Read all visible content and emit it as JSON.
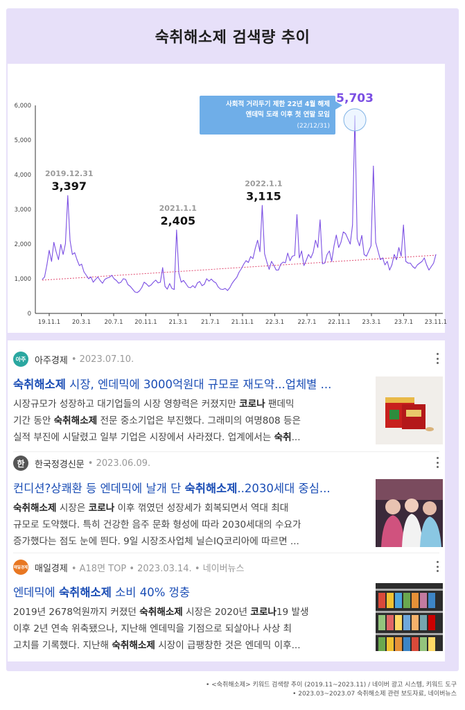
{
  "title": "숙취해소제 검색량 추이",
  "chart_data": {
    "type": "line",
    "y_ticks": [
      "0",
      "1,000",
      "2,000",
      "3,000",
      "4,000",
      "5,000",
      "6,000"
    ],
    "ylim": [
      0,
      6000
    ],
    "x_ticks": [
      "19.11.1",
      "20.3.1",
      "20.7.1",
      "20.11.1",
      "21.3.1",
      "21.7.1",
      "21.11.1",
      "22.3.1",
      "22.7.1",
      "22.11.1",
      "23.3.1",
      "23.7.1",
      "23.11.1"
    ],
    "grid": false,
    "line_color": "#7b4fe3",
    "trend_color": "#e0496f",
    "trend": [
      960,
      1680
    ],
    "series": [
      {
        "values": [
          980,
          1050,
          1400,
          1820,
          1500,
          2050,
          1780,
          1550,
          1990,
          1700,
          2010,
          3397,
          2100,
          1700,
          1750,
          1550,
          1380,
          1420,
          1200,
          1100,
          1000,
          1050,
          900,
          980,
          1050,
          950,
          870,
          980,
          1020,
          1040,
          1100,
          1000,
          950,
          870,
          900,
          1000,
          980,
          830,
          780,
          700,
          620,
          600,
          650,
          750,
          900,
          850,
          780,
          820,
          900,
          960,
          880,
          900,
          1320,
          780,
          700,
          860,
          720,
          690,
          2405,
          1160,
          900,
          950,
          860,
          760,
          740,
          800,
          740,
          880,
          920,
          800,
          840,
          1000,
          930,
          990,
          920,
          880,
          760,
          700,
          690,
          720,
          660,
          740,
          870,
          960,
          1040,
          1190,
          1290,
          1420,
          1520,
          1470,
          1640,
          1580,
          1880,
          2110,
          1780,
          3115,
          1720,
          1480,
          1270,
          1500,
          1390,
          1250,
          1250,
          1420,
          1480,
          1460,
          1740,
          1520,
          1650,
          1670,
          2850,
          1600,
          1800,
          1380,
          1530,
          1700,
          1600,
          1760,
          2110,
          1900,
          2700,
          1430,
          1450,
          1700,
          1800,
          1500,
          1950,
          2260,
          1900,
          2050,
          2350,
          2300,
          2150,
          2000,
          2550,
          5703,
          2150,
          1950,
          2250,
          1700,
          1650,
          1800,
          1950,
          4250,
          2050,
          1800,
          1550,
          1600,
          1400,
          1500,
          1250,
          1400,
          1700,
          1550,
          1900,
          1650,
          2550,
          1500,
          1450,
          1450,
          1350,
          1300,
          1400,
          1450,
          1500,
          1600,
          1400,
          1250,
          1350,
          1450,
          1700
        ]
      }
    ],
    "annotations": [
      {
        "date": "2019.12.31",
        "value": "3,397"
      },
      {
        "date": "2021.1.1",
        "value": "2,405"
      },
      {
        "date": "2022.1.1",
        "value": "3,115"
      },
      {
        "value": "5,703",
        "note_line1": "사회적 거리두기 제한 22년 4월 해제",
        "note_line2": "엔데믹 도래 이후 첫 연말 모임",
        "note_date": "(22/12/31)"
      }
    ]
  },
  "news": [
    {
      "source": "아주경제",
      "meta": "• 2023.07.10.",
      "logo_text": "아주",
      "logo_color": "#2aa7a0",
      "headline_kw": "숙취해소제",
      "headline_rest": " 시장, 엔데믹에 3000억원대 규모로 재도약...업체별 ...",
      "lines": [
        [
          "시장규모가 성장하고 대기업들의 시장 영향력은 커졌지만 ",
          "코로나",
          " 팬데믹"
        ],
        [
          "기간 동안 ",
          "숙취해소제",
          " 전문 중소기업은 부진했다. 그래미의 여명808 등은"
        ],
        [
          "실적 부진에 시달렸고 일부 기업은 시장에서 사라졌다. 업계에서는 ",
          "숙취",
          "..."
        ]
      ]
    },
    {
      "source": "한국정경신문",
      "meta": "• 2023.06.09.",
      "logo_text": "한",
      "logo_color": "#555555",
      "headline_pre": "컨디션?상쾌환 등 엔데믹에 날개 단 ",
      "headline_kw": "숙취해소제",
      "headline_rest": "..2030세대 중심...",
      "lines": [
        [
          "",
          "숙취해소제",
          " 시장은 ",
          "코로나",
          " 이후 꺾였던 성장세가 회복되면서 역대 최대"
        ],
        [
          "규모로 도약했다. 특히 건강한 음주 문화 형성에 따라 2030세대의 수요가"
        ],
        [
          "증가했다는 점도 눈에 띈다. 9일 시장조사업체 닐슨IQ코리아에 따르면 ..."
        ]
      ]
    },
    {
      "source": "매일경제",
      "meta": "• A18면 TOP • 2023.03.14. • 네이버뉴스",
      "logo_text": "매일경제",
      "logo_color": "#e87722",
      "headline_pre": "엔데믹에 ",
      "headline_kw": "숙취해소제",
      "headline_rest": " 소비 40% 껑충",
      "lines": [
        [
          "2019년 2678억원까지 커졌던 ",
          "숙취해소제",
          " 시장은 2020년 ",
          "코로나",
          "19 발생"
        ],
        [
          "이후 2년 연속 위축됐으나, 지난해 엔데믹을 기점으로 되살아나 사상 최"
        ],
        [
          "고치를 기록했다. 지난해 ",
          "숙취해소제",
          " 시장이 급팽창한 것은 엔데믹 이후..."
        ]
      ]
    }
  ],
  "footnotes": [
    "• <숙취해소제> 키워드 검색량 추이 (2019.11~2023.11) / 네이버 광고 시스템, 키워드 도구",
    "• 2023.03~2023.07 숙취해소제 관련 보도자료, 네이버뉴스"
  ]
}
